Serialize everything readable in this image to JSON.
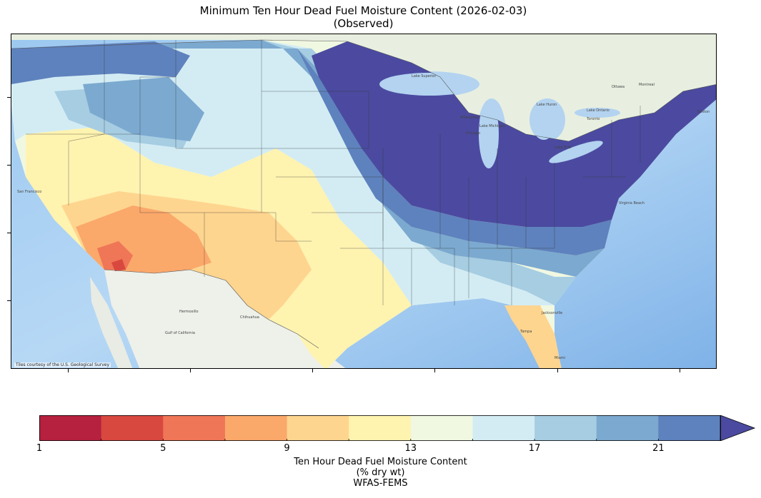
{
  "map": {
    "title": "Minimum Ten Hour Dead Fuel Moisture Content (2026-02-03)",
    "subtitle": "(Observed)",
    "attribution": "Tiles courtesy of the U.S. Geological Survey",
    "cities": [
      "San Francisco",
      "Hermosillo",
      "Chihuahua",
      "Milwaukee",
      "Chicago",
      "Toronto",
      "Ottawa",
      "Montreal",
      "Boston",
      "Jacksonville",
      "Tampa",
      "Miami",
      "Virginia Beach",
      "Lake Superior",
      "Lake Huron",
      "Lake Ontario",
      "Lake Erie",
      "Lake Michigan",
      "Gulf of California"
    ]
  },
  "colorbar": {
    "label_line1": "Ten Hour Dead Fuel Moisture Content",
    "label_line2": "(% dry wt)",
    "label_line3": "WFAS-FEMS",
    "bounds": [
      1,
      3,
      5,
      7,
      9,
      11,
      13,
      15,
      17,
      19,
      21,
      23
    ],
    "tick_labels": [
      "1",
      "5",
      "9",
      "13",
      "17",
      "21"
    ],
    "tick_values": [
      1,
      5,
      9,
      13,
      17,
      21
    ],
    "colors": [
      "#b5213f",
      "#d9483f",
      "#ef7657",
      "#fba86b",
      "#fed58f",
      "#fff3b0",
      "#f1f8e1",
      "#d3ecf4",
      "#a6cde2",
      "#7ca9cf",
      "#5e82bd"
    ],
    "extend_color": "#4b4aa0",
    "extend": "max"
  }
}
